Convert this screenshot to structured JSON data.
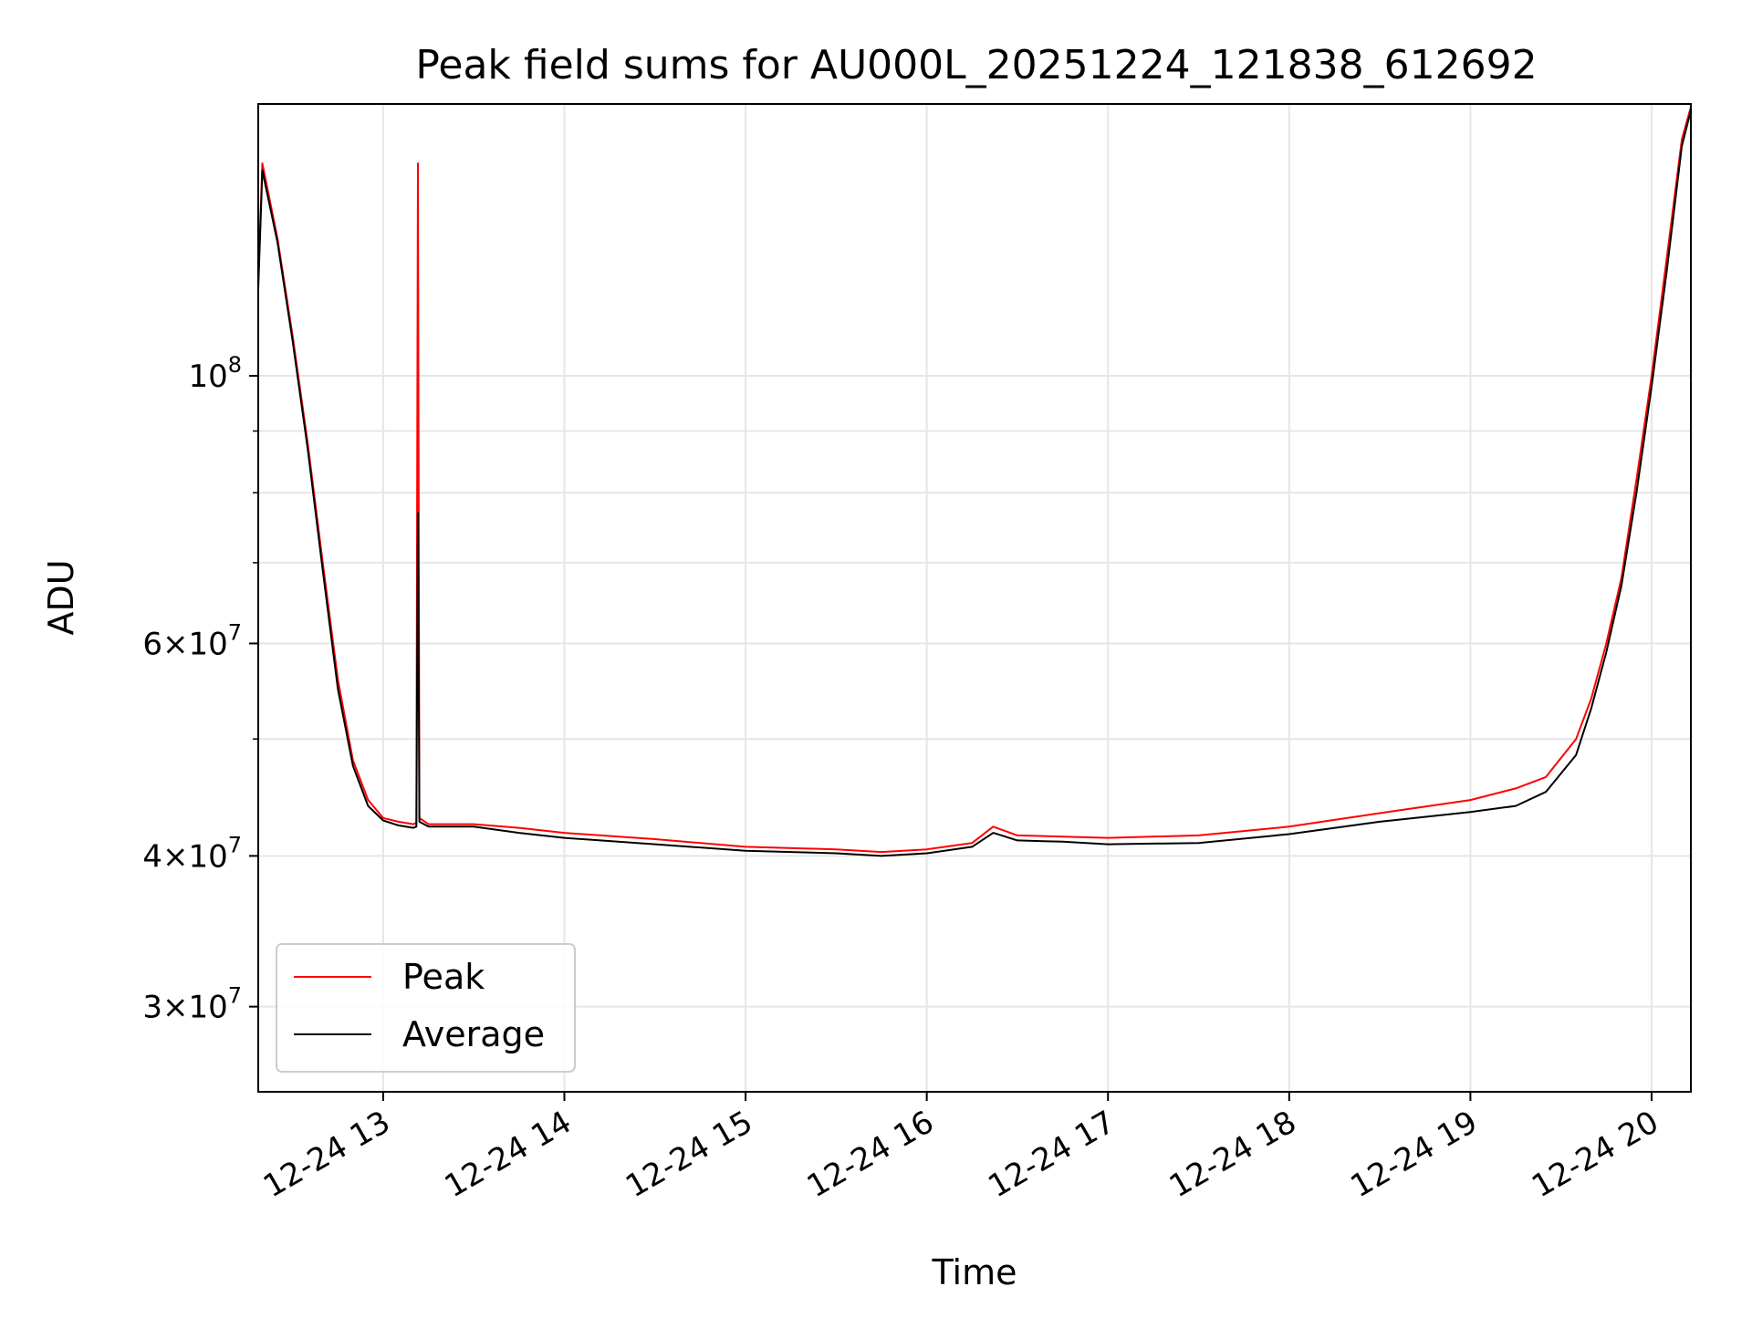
{
  "chart_data": {
    "type": "line",
    "title": "Peak field sums for AU000L_20251224_121838_612692",
    "xlabel": "Time",
    "ylabel": "ADU",
    "y_scale": "log",
    "ylim": [
      25500000,
      168000000
    ],
    "xlim": [
      "2025-12-24 12:18:38",
      "2025-12-24 20:13:00"
    ],
    "grid": true,
    "legend_position": "lower-left",
    "x_ticks": [
      {
        "value": "2025-12-24 13:00",
        "label": "12-24 13"
      },
      {
        "value": "2025-12-24 14:00",
        "label": "12-24 14"
      },
      {
        "value": "2025-12-24 15:00",
        "label": "12-24 15"
      },
      {
        "value": "2025-12-24 16:00",
        "label": "12-24 16"
      },
      {
        "value": "2025-12-24 17:00",
        "label": "12-24 17"
      },
      {
        "value": "2025-12-24 18:00",
        "label": "12-24 18"
      },
      {
        "value": "2025-12-24 19:00",
        "label": "12-24 19"
      },
      {
        "value": "2025-12-24 20:00",
        "label": "12-24 20"
      }
    ],
    "y_ticks": [
      {
        "value": 30000000,
        "base": "3",
        "exp": "7"
      },
      {
        "value": 40000000,
        "base": "4",
        "exp": "7"
      },
      {
        "value": 60000000,
        "base": "6",
        "exp": "7"
      },
      {
        "value": 100000000,
        "base": "",
        "exp": "8"
      }
    ],
    "y_minor_ticks": [
      50000000,
      70000000,
      80000000,
      90000000
    ],
    "colors": {
      "Peak": "#ff0000",
      "Average": "#000000",
      "grid": "#e6e6e6"
    },
    "series": [
      {
        "name": "Peak",
        "color": "#ff0000",
        "x": [
          "2025-12-24 12:18:38",
          "2025-12-24 12:20:00",
          "2025-12-24 12:25:00",
          "2025-12-24 12:30:00",
          "2025-12-24 12:35:00",
          "2025-12-24 12:40:00",
          "2025-12-24 12:45:00",
          "2025-12-24 12:50:00",
          "2025-12-24 12:55:00",
          "2025-12-24 13:00:00",
          "2025-12-24 13:05:00",
          "2025-12-24 13:10:00",
          "2025-12-24 13:11:00",
          "2025-12-24 13:11:30",
          "2025-12-24 13:12:00",
          "2025-12-24 13:15:00",
          "2025-12-24 13:30:00",
          "2025-12-24 13:45:00",
          "2025-12-24 14:00:00",
          "2025-12-24 14:30:00",
          "2025-12-24 15:00:00",
          "2025-12-24 15:30:00",
          "2025-12-24 15:45:00",
          "2025-12-24 16:00:00",
          "2025-12-24 16:15:00",
          "2025-12-24 16:22:00",
          "2025-12-24 16:30:00",
          "2025-12-24 16:45:00",
          "2025-12-24 17:00:00",
          "2025-12-24 17:30:00",
          "2025-12-24 18:00:00",
          "2025-12-24 18:30:00",
          "2025-12-24 19:00:00",
          "2025-12-24 19:15:00",
          "2025-12-24 19:25:00",
          "2025-12-24 19:35:00",
          "2025-12-24 19:40:00",
          "2025-12-24 19:45:00",
          "2025-12-24 19:50:00",
          "2025-12-24 19:55:00",
          "2025-12-24 20:00:00",
          "2025-12-24 20:05:00",
          "2025-12-24 20:10:00",
          "2025-12-24 20:13:00"
        ],
        "y": [
          120000000,
          150000000,
          130000000,
          108000000,
          88000000,
          70000000,
          56000000,
          48000000,
          44500000,
          43000000,
          42700000,
          42500000,
          42600000,
          150000000,
          43000000,
          42500000,
          42500000,
          42200000,
          41800000,
          41300000,
          40700000,
          40500000,
          40300000,
          40500000,
          41000000,
          42300000,
          41600000,
          41500000,
          41400000,
          41600000,
          42300000,
          43400000,
          44500000,
          45500000,
          46500000,
          50000000,
          54000000,
          60000000,
          68000000,
          82000000,
          100000000,
          125000000,
          157000000,
          167000000
        ]
      },
      {
        "name": "Average",
        "color": "#000000",
        "x": [
          "2025-12-24 12:18:38",
          "2025-12-24 12:20:00",
          "2025-12-24 12:25:00",
          "2025-12-24 12:30:00",
          "2025-12-24 12:35:00",
          "2025-12-24 12:40:00",
          "2025-12-24 12:45:00",
          "2025-12-24 12:50:00",
          "2025-12-24 12:55:00",
          "2025-12-24 13:00:00",
          "2025-12-24 13:05:00",
          "2025-12-24 13:10:00",
          "2025-12-24 13:11:00",
          "2025-12-24 13:11:30",
          "2025-12-24 13:12:00",
          "2025-12-24 13:15:00",
          "2025-12-24 13:30:00",
          "2025-12-24 13:45:00",
          "2025-12-24 14:00:00",
          "2025-12-24 14:30:00",
          "2025-12-24 15:00:00",
          "2025-12-24 15:30:00",
          "2025-12-24 15:45:00",
          "2025-12-24 16:00:00",
          "2025-12-24 16:15:00",
          "2025-12-24 16:22:00",
          "2025-12-24 16:30:00",
          "2025-12-24 16:45:00",
          "2025-12-24 17:00:00",
          "2025-12-24 17:30:00",
          "2025-12-24 18:00:00",
          "2025-12-24 18:30:00",
          "2025-12-24 19:00:00",
          "2025-12-24 19:15:00",
          "2025-12-24 19:25:00",
          "2025-12-24 19:35:00",
          "2025-12-24 19:40:00",
          "2025-12-24 19:45:00",
          "2025-12-24 19:50:00",
          "2025-12-24 19:55:00",
          "2025-12-24 20:00:00",
          "2025-12-24 20:05:00",
          "2025-12-24 20:10:00",
          "2025-12-24 20:13:00"
        ],
        "y": [
          118000000,
          148000000,
          129000000,
          107000000,
          87000000,
          69000000,
          55000000,
          47500000,
          44000000,
          42800000,
          42400000,
          42200000,
          42300000,
          77000000,
          42700000,
          42300000,
          42300000,
          41800000,
          41400000,
          40900000,
          40400000,
          40200000,
          40000000,
          40200000,
          40700000,
          41800000,
          41200000,
          41100000,
          40900000,
          41000000,
          41700000,
          42700000,
          43500000,
          44000000,
          45200000,
          48500000,
          53000000,
          59000000,
          67000000,
          80000000,
          98000000,
          122000000,
          155000000,
          166000000
        ]
      }
    ]
  }
}
